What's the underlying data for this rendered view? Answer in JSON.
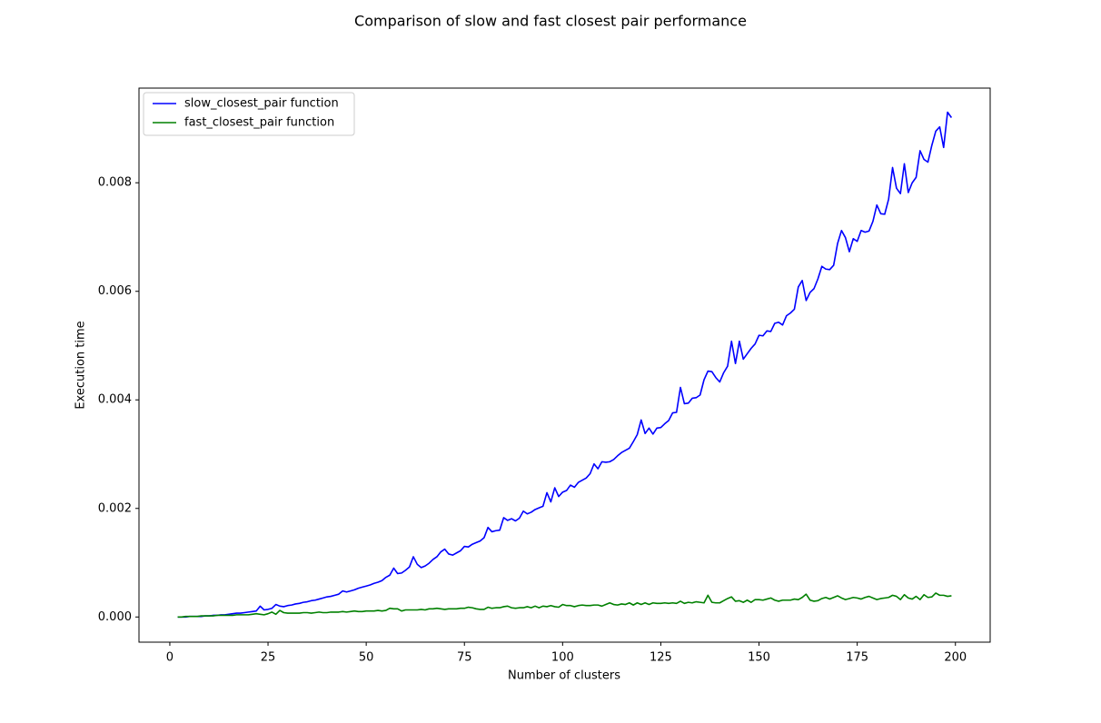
{
  "chart_data": {
    "type": "line",
    "title": "Comparison of slow and fast closest pair performance",
    "xlabel": "Number of clusters",
    "ylabel": "Execution time",
    "legend": "upper left",
    "x": [
      2,
      3,
      4,
      5,
      6,
      7,
      8,
      9,
      10,
      11,
      12,
      13,
      14,
      15,
      16,
      17,
      18,
      19,
      20,
      21,
      22,
      23,
      24,
      25,
      26,
      27,
      28,
      29,
      30,
      31,
      32,
      33,
      34,
      35,
      36,
      37,
      38,
      39,
      40,
      41,
      42,
      43,
      44,
      45,
      46,
      47,
      48,
      49,
      50,
      51,
      52,
      53,
      54,
      55,
      56,
      57,
      58,
      59,
      60,
      61,
      62,
      63,
      64,
      65,
      66,
      67,
      68,
      69,
      70,
      71,
      72,
      73,
      74,
      75,
      76,
      77,
      78,
      79,
      80,
      81,
      82,
      83,
      84,
      85,
      86,
      87,
      88,
      89,
      90,
      91,
      92,
      93,
      94,
      95,
      96,
      97,
      98,
      99,
      100,
      101,
      102,
      103,
      104,
      105,
      106,
      107,
      108,
      109,
      110,
      111,
      112,
      113,
      114,
      115,
      116,
      117,
      118,
      119,
      120,
      121,
      122,
      123,
      124,
      125,
      126,
      127,
      128,
      129,
      130,
      131,
      132,
      133,
      134,
      135,
      136,
      137,
      138,
      139,
      140,
      141,
      142,
      143,
      144,
      145,
      146,
      147,
      148,
      149,
      150,
      151,
      152,
      153,
      154,
      155,
      156,
      157,
      158,
      159,
      160,
      161,
      162,
      163,
      164,
      165,
      166,
      167,
      168,
      169,
      170,
      171,
      172,
      173,
      174,
      175,
      176,
      177,
      178,
      179,
      180,
      181,
      182,
      183,
      184,
      185,
      186,
      187,
      188,
      189,
      190,
      191,
      192,
      193,
      194,
      195,
      196,
      197,
      198,
      199
    ],
    "series": [
      {
        "name": "slow_closest_pair function",
        "color": "#0000ff",
        "values": [
          0.0,
          0.0,
          0.0,
          1e-05,
          1e-05,
          1e-05,
          1e-05,
          2e-05,
          2e-05,
          3e-05,
          3e-05,
          4e-05,
          4e-05,
          5e-05,
          6e-05,
          7e-05,
          7e-05,
          8e-05,
          9e-05,
          0.0001,
          0.00011,
          0.0002,
          0.00013,
          0.00014,
          0.00016,
          0.00023,
          0.0002,
          0.00019,
          0.00021,
          0.00022,
          0.00024,
          0.00025,
          0.00027,
          0.00028,
          0.0003,
          0.00031,
          0.00033,
          0.00035,
          0.00037,
          0.00038,
          0.0004,
          0.00042,
          0.00048,
          0.00046,
          0.00048,
          0.0005,
          0.00053,
          0.00055,
          0.00057,
          0.00059,
          0.00062,
          0.00064,
          0.00067,
          0.00073,
          0.00077,
          0.0009,
          0.0008,
          0.00081,
          0.00086,
          0.00092,
          0.00111,
          0.00097,
          0.00091,
          0.00094,
          0.00099,
          0.00106,
          0.00111,
          0.0012,
          0.00125,
          0.00116,
          0.00114,
          0.00118,
          0.00122,
          0.0013,
          0.00129,
          0.00134,
          0.00137,
          0.0014,
          0.00146,
          0.00165,
          0.00157,
          0.00159,
          0.0016,
          0.00183,
          0.00178,
          0.00181,
          0.00177,
          0.00182,
          0.00195,
          0.0019,
          0.00193,
          0.00198,
          0.00201,
          0.00204,
          0.00229,
          0.00212,
          0.00238,
          0.00222,
          0.0023,
          0.00233,
          0.00243,
          0.00239,
          0.00248,
          0.00252,
          0.00256,
          0.00264,
          0.00282,
          0.00273,
          0.00286,
          0.00285,
          0.00286,
          0.0029,
          0.00297,
          0.00303,
          0.00307,
          0.00311,
          0.00323,
          0.00336,
          0.00363,
          0.00338,
          0.00348,
          0.00337,
          0.00348,
          0.00349,
          0.00356,
          0.00362,
          0.00376,
          0.00377,
          0.00423,
          0.00393,
          0.00394,
          0.00403,
          0.00404,
          0.00409,
          0.00437,
          0.00453,
          0.00452,
          0.00441,
          0.00433,
          0.0045,
          0.00462,
          0.00508,
          0.00467,
          0.00508,
          0.00475,
          0.00485,
          0.00495,
          0.00503,
          0.00519,
          0.00518,
          0.00527,
          0.00526,
          0.00541,
          0.00543,
          0.00538,
          0.00555,
          0.0056,
          0.00567,
          0.00608,
          0.0062,
          0.00583,
          0.00598,
          0.00605,
          0.00623,
          0.00646,
          0.00641,
          0.0064,
          0.00648,
          0.00688,
          0.00712,
          0.00699,
          0.00673,
          0.00697,
          0.00692,
          0.00712,
          0.00709,
          0.00711,
          0.00729,
          0.00759,
          0.00743,
          0.00742,
          0.0077,
          0.00828,
          0.0079,
          0.0078,
          0.00835,
          0.00782,
          0.008,
          0.0081,
          0.00859,
          0.00843,
          0.00838,
          0.00869,
          0.00895,
          0.00903,
          0.00865,
          0.0093,
          0.0092
        ]
      },
      {
        "name": "fast_closest_pair function",
        "color": "#008000",
        "values": [
          0.0,
          0.0,
          1e-05,
          1e-05,
          1e-05,
          1e-05,
          2e-05,
          2e-05,
          2e-05,
          2e-05,
          3e-05,
          3e-05,
          3e-05,
          3e-05,
          3e-05,
          4e-05,
          4e-05,
          4e-05,
          4e-05,
          5e-05,
          6e-05,
          5e-05,
          4e-05,
          6e-05,
          9e-05,
          5e-05,
          0.00012,
          8e-05,
          7e-05,
          7e-05,
          7e-05,
          7e-05,
          8e-05,
          8e-05,
          7e-05,
          8e-05,
          9e-05,
          8e-05,
          8e-05,
          9e-05,
          9e-05,
          9e-05,
          0.0001,
          9e-05,
          0.0001,
          0.00011,
          0.0001,
          0.0001,
          0.00011,
          0.00011,
          0.00011,
          0.00012,
          0.00011,
          0.00012,
          0.00016,
          0.00015,
          0.00015,
          0.00011,
          0.00013,
          0.00013,
          0.00013,
          0.00013,
          0.00014,
          0.00013,
          0.00015,
          0.00015,
          0.00016,
          0.00015,
          0.00014,
          0.00015,
          0.00015,
          0.00015,
          0.00016,
          0.00016,
          0.00018,
          0.00017,
          0.00015,
          0.00014,
          0.00014,
          0.00018,
          0.00016,
          0.00017,
          0.00017,
          0.00019,
          0.0002,
          0.00017,
          0.00016,
          0.00017,
          0.00017,
          0.00019,
          0.00017,
          0.0002,
          0.00017,
          0.0002,
          0.00019,
          0.00021,
          0.00019,
          0.00018,
          0.00023,
          0.00021,
          0.00021,
          0.00019,
          0.00021,
          0.00022,
          0.00021,
          0.00021,
          0.00022,
          0.00022,
          0.0002,
          0.00023,
          0.00026,
          0.00023,
          0.00022,
          0.00024,
          0.00023,
          0.00026,
          0.00022,
          0.00026,
          0.00023,
          0.00026,
          0.00023,
          0.00026,
          0.00025,
          0.00025,
          0.00026,
          0.00025,
          0.00026,
          0.00025,
          0.00029,
          0.00025,
          0.00027,
          0.00026,
          0.00028,
          0.00027,
          0.00026,
          0.0004,
          0.00027,
          0.00026,
          0.00026,
          0.0003,
          0.00034,
          0.00037,
          0.00029,
          0.0003,
          0.00027,
          0.00031,
          0.00027,
          0.00032,
          0.00032,
          0.00031,
          0.00033,
          0.00035,
          0.00031,
          0.00029,
          0.00031,
          0.00031,
          0.00031,
          0.00033,
          0.00032,
          0.00036,
          0.00042,
          0.00031,
          0.00029,
          0.0003,
          0.00034,
          0.00036,
          0.00033,
          0.00036,
          0.00039,
          0.00035,
          0.00032,
          0.00034,
          0.00036,
          0.00035,
          0.00033,
          0.00036,
          0.00038,
          0.00035,
          0.00032,
          0.00034,
          0.00035,
          0.00036,
          0.0004,
          0.00038,
          0.00032,
          0.00041,
          0.00035,
          0.00033,
          0.00038,
          0.00032,
          0.00041,
          0.00036,
          0.00037,
          0.00044,
          0.0004,
          0.0004,
          0.00038,
          0.00039
        ]
      }
    ],
    "xlim": [
      -7.85,
      208.85
    ],
    "ylim": [
      -0.000464,
      0.009744
    ],
    "xticks": [
      0,
      25,
      50,
      75,
      100,
      125,
      150,
      175,
      200
    ],
    "yticks": [
      {
        "value": 0,
        "label": "0.000"
      },
      0.002,
      0.004,
      0.006,
      0.008
    ]
  }
}
